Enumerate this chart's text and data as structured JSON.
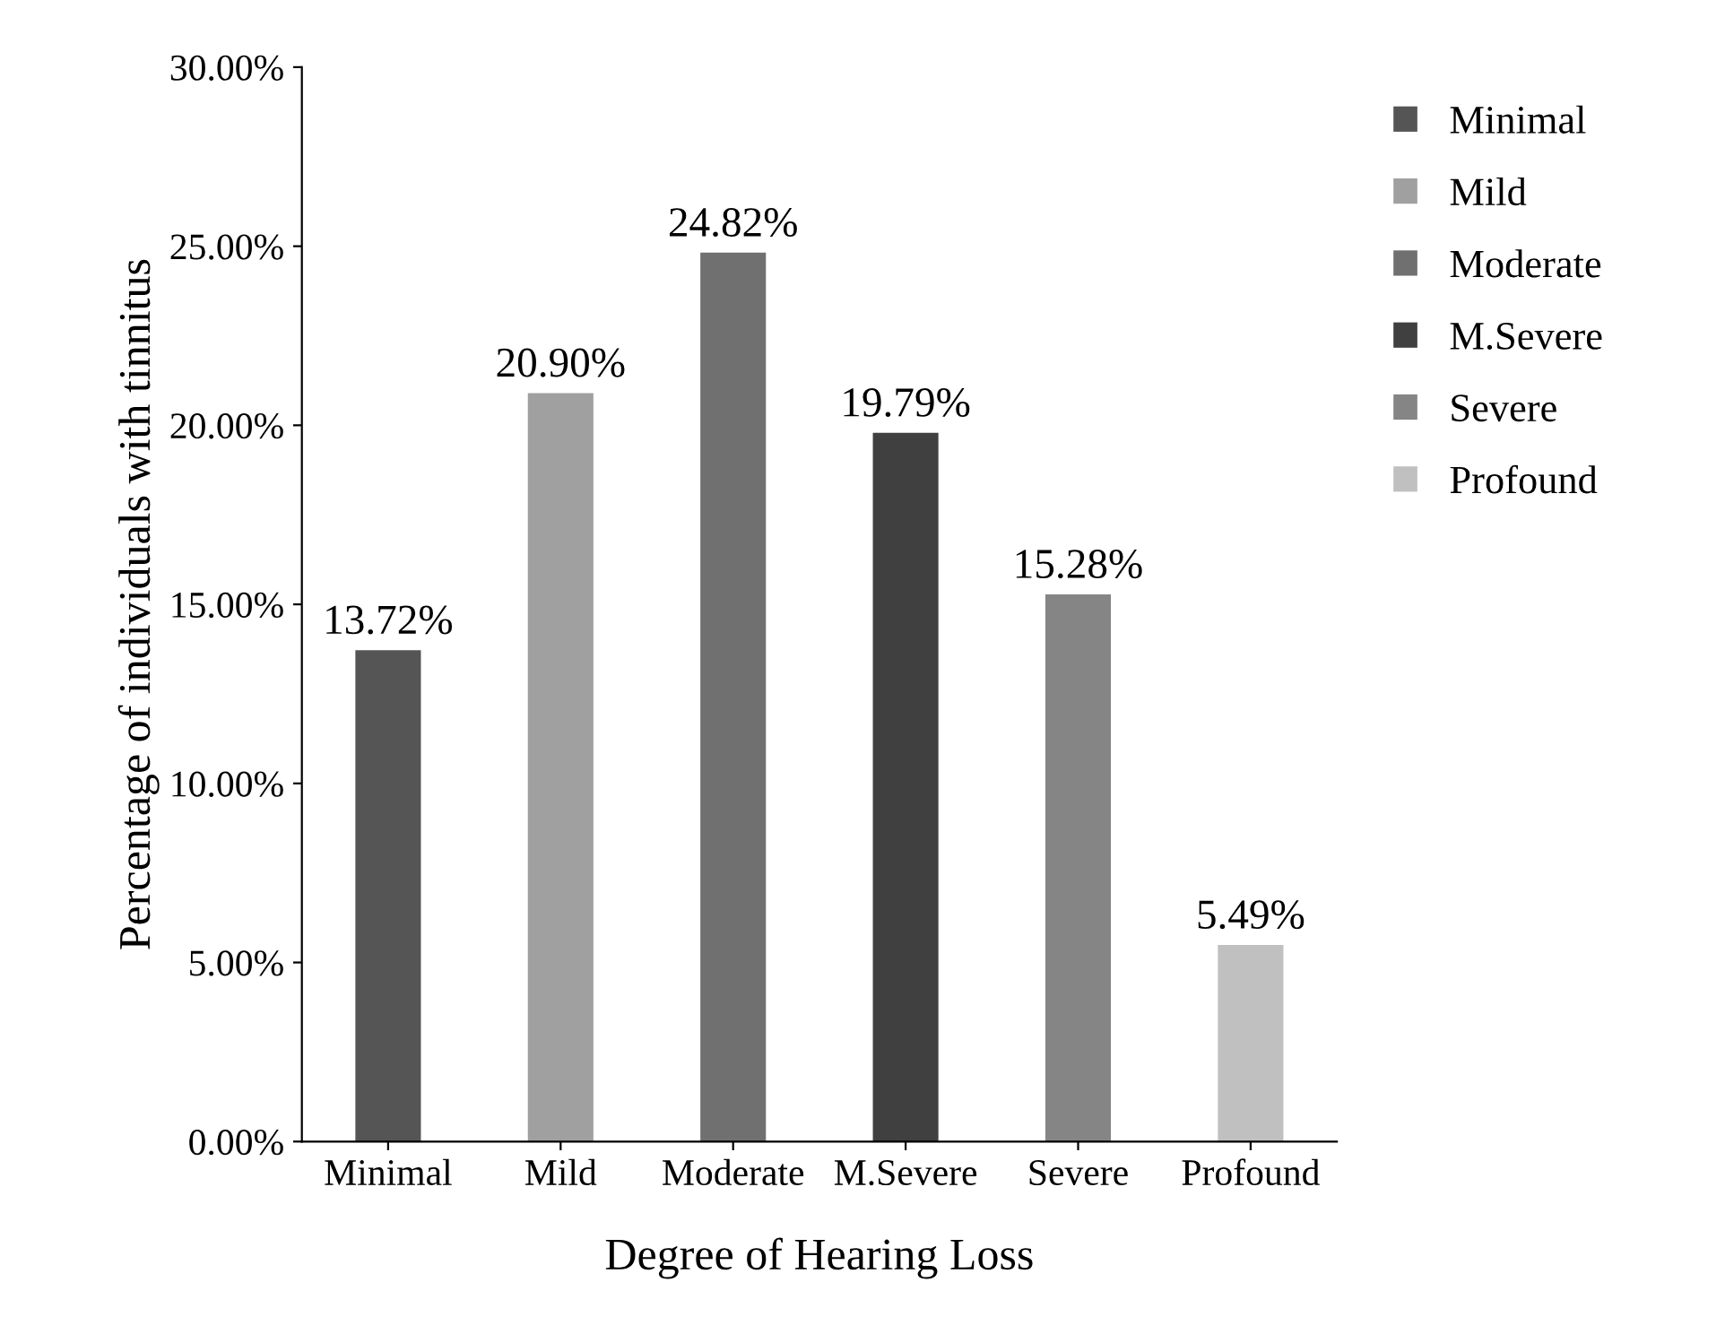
{
  "chart_data": {
    "type": "bar",
    "xlabel": "Degree of Hearing Loss",
    "ylabel": "Percentage of individuals with tinnitus",
    "categories": [
      "Minimal",
      "Mild",
      "Moderate",
      "M.Severe",
      "Severe",
      "Profound"
    ],
    "series": [
      {
        "name": "Minimal",
        "color": "#555555",
        "values": [
          13.72,
          null,
          null,
          null,
          null,
          null
        ],
        "value_labels": [
          "13.72%",
          null,
          null,
          null,
          null,
          null
        ]
      },
      {
        "name": "Mild",
        "color": "#a0a0a0",
        "values": [
          null,
          20.9,
          null,
          null,
          null,
          null
        ],
        "value_labels": [
          null,
          "20.90%",
          null,
          null,
          null,
          null
        ]
      },
      {
        "name": "Moderate",
        "color": "#707070",
        "values": [
          null,
          null,
          24.82,
          null,
          null,
          null
        ],
        "value_labels": [
          null,
          null,
          "24.82%",
          null,
          null,
          null
        ]
      },
      {
        "name": "M.Severe",
        "color": "#404040",
        "values": [
          null,
          null,
          null,
          19.79,
          null,
          null
        ],
        "value_labels": [
          null,
          null,
          null,
          "19.79%",
          null,
          null
        ]
      },
      {
        "name": "Severe",
        "color": "#858585",
        "values": [
          null,
          null,
          null,
          null,
          15.28,
          null
        ],
        "value_labels": [
          null,
          null,
          null,
          null,
          "15.28%",
          null
        ]
      },
      {
        "name": "Profound",
        "color": "#c0c0c0",
        "values": [
          null,
          null,
          null,
          null,
          null,
          5.49
        ],
        "value_labels": [
          null,
          null,
          null,
          null,
          null,
          "5.49%"
        ]
      }
    ],
    "ylim": [
      0,
      30
    ],
    "yticks": [
      {
        "value": 0,
        "label": "0.00%"
      },
      {
        "value": 5,
        "label": "5.00%"
      },
      {
        "value": 10,
        "label": "10.00%"
      },
      {
        "value": 15,
        "label": "15.00%"
      },
      {
        "value": 20,
        "label": "20.00%"
      },
      {
        "value": 25,
        "label": "25.00%"
      },
      {
        "value": 30,
        "label": "30.00%"
      }
    ],
    "grid": false,
    "legend": "right"
  }
}
